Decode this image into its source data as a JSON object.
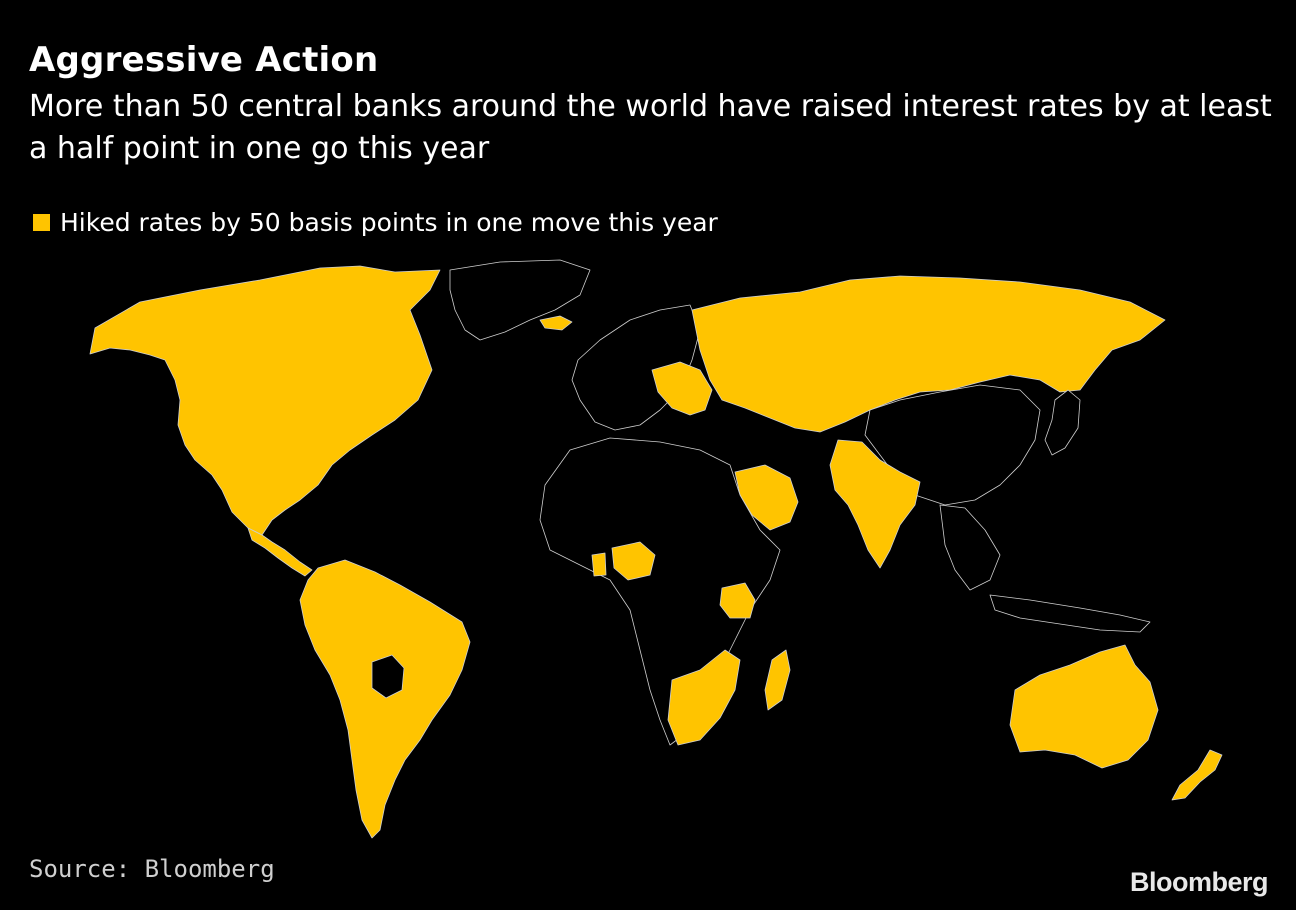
{
  "title": "Aggressive Action",
  "subtitle": "More than 50 central banks around the world have raised interest rates by at least a half point in one go this year",
  "legend": {
    "label": "Hiked rates by 50 basis points in one move this year",
    "color": "#ffc400"
  },
  "map": {
    "highlight_color": "#ffc400",
    "base_color": "#000000",
    "border_color": "#cfcfcf"
  },
  "source": "Source: Bloomberg",
  "brand": "Bloomberg"
}
